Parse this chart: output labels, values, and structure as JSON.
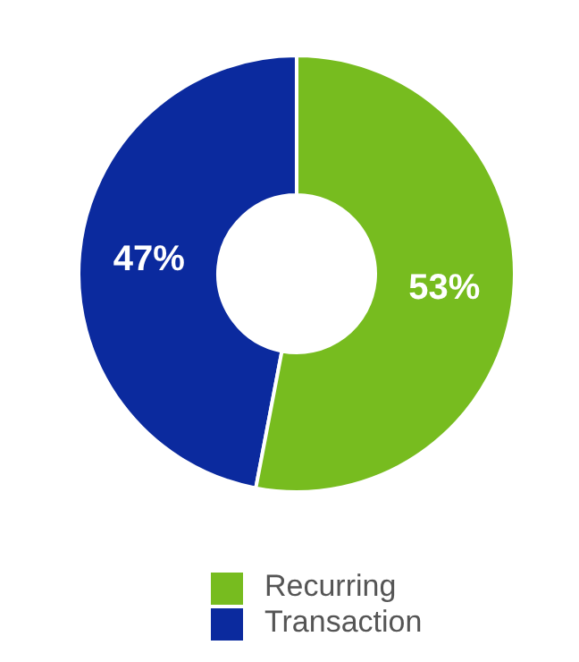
{
  "chart_data": {
    "type": "donut",
    "categories": [
      "Transaction",
      "Recurring"
    ],
    "values": [
      47,
      53
    ],
    "colors": [
      "#0b2a9e",
      "#77bc1f"
    ],
    "value_labels": [
      "47%",
      "53%"
    ],
    "legend": "bottom"
  }
}
